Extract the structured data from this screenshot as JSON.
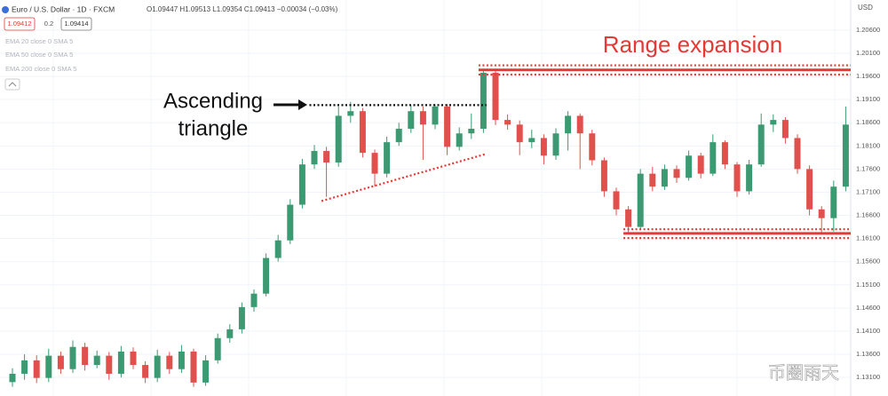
{
  "header": {
    "symbol": "Euro / U.S. Dollar · 1D · FXCM",
    "ohlc": "O1.09447 H1.09513 L1.09354 C1.09413 −0.00034 (−0.03%)",
    "sell": "1.09412",
    "spread": "0.2",
    "buy": "1.09414",
    "indicators": [
      "EMA 20 close 0 SMA 5",
      "EMA 50 close 0 SMA 5",
      "EMA 200 close 0 SMA 5"
    ],
    "watermark": "币圈雨天"
  },
  "chart_data": {
    "type": "candlestick",
    "y_axis_label": "USD",
    "up_color": "#3c9a72",
    "down_color": "#e0514d",
    "grid": true,
    "open": [
      1.13,
      1.1318,
      1.1347,
      1.1309,
      1.1357,
      1.1328,
      1.1376,
      1.1337,
      1.1357,
      1.1318,
      1.1366,
      1.1337,
      1.1309,
      1.1357,
      1.1328,
      1.1366,
      1.1299,
      1.1347,
      1.1395,
      1.1414,
      1.1462,
      1.1491,
      1.1568,
      1.1606,
      1.1683,
      1.177,
      1.1799,
      1.1774,
      1.1875,
      1.1885,
      1.1795,
      1.175,
      1.1818,
      1.1847,
      1.1885,
      1.1856,
      1.1895,
      1.1808,
      1.1837,
      1.1847,
      1.1968,
      1.1866,
      1.1856,
      1.1818,
      1.1827,
      1.1789,
      1.1837,
      1.1875,
      1.1837,
      1.1779,
      1.1712,
      1.1673,
      1.1635,
      1.175,
      1.1722,
      1.176,
      1.1741,
      1.1789,
      1.175,
      1.1818,
      1.177,
      1.1712,
      1.177,
      1.1856,
      1.1866,
      1.1827,
      1.176,
      1.1673,
      1.1654,
      1.1722
    ],
    "high": [
      1.133,
      1.136,
      1.1358,
      1.1372,
      1.1366,
      1.139,
      1.1385,
      1.1368,
      1.1365,
      1.1378,
      1.1375,
      1.1345,
      1.137,
      1.1365,
      1.138,
      1.1372,
      1.1358,
      1.1405,
      1.1425,
      1.1472,
      1.15,
      1.1578,
      1.1618,
      1.1695,
      1.1782,
      1.1812,
      1.1808,
      1.1895,
      1.1905,
      1.1892,
      1.1802,
      1.183,
      1.186,
      1.1898,
      1.1895,
      1.19,
      1.19,
      1.185,
      1.188,
      1.1975,
      1.1972,
      1.1878,
      1.1865,
      1.1845,
      1.1835,
      1.1848,
      1.1885,
      1.188,
      1.1845,
      1.1785,
      1.172,
      1.168,
      1.176,
      1.1765,
      1.177,
      1.1768,
      1.18,
      1.1795,
      1.1835,
      1.1822,
      1.1775,
      1.178,
      1.188,
      1.1878,
      1.1872,
      1.1835,
      1.1768,
      1.168,
      1.1735,
      1.1895
    ],
    "low": [
      1.129,
      1.1305,
      1.1298,
      1.13,
      1.1318,
      1.132,
      1.1325,
      1.133,
      1.1305,
      1.131,
      1.1328,
      1.1298,
      1.13,
      1.1318,
      1.132,
      1.129,
      1.1292,
      1.134,
      1.1385,
      1.1405,
      1.1452,
      1.1485,
      1.156,
      1.1598,
      1.1675,
      1.176,
      1.17,
      1.1765,
      1.186,
      1.1785,
      1.1722,
      1.1742,
      1.181,
      1.1838,
      1.178,
      1.1846,
      1.179,
      1.18,
      1.1825,
      1.1838,
      1.1855,
      1.1845,
      1.179,
      1.1805,
      1.177,
      1.178,
      1.18,
      1.176,
      1.1768,
      1.17,
      1.166,
      1.1622,
      1.1628,
      1.1712,
      1.1715,
      1.173,
      1.1735,
      1.174,
      1.1745,
      1.176,
      1.17,
      1.1705,
      1.1765,
      1.184,
      1.1815,
      1.175,
      1.166,
      1.162,
      1.1625,
      1.1712
    ],
    "close": [
      1.1318,
      1.1347,
      1.1309,
      1.1357,
      1.1328,
      1.1376,
      1.1337,
      1.1357,
      1.1318,
      1.1366,
      1.1337,
      1.1309,
      1.1357,
      1.1328,
      1.1366,
      1.1299,
      1.1347,
      1.1395,
      1.1414,
      1.1462,
      1.1491,
      1.1568,
      1.1606,
      1.1683,
      1.177,
      1.1799,
      1.1774,
      1.1875,
      1.1885,
      1.1795,
      1.175,
      1.1818,
      1.1847,
      1.1885,
      1.1856,
      1.1895,
      1.1808,
      1.1837,
      1.1847,
      1.1968,
      1.1866,
      1.1856,
      1.1818,
      1.1827,
      1.1789,
      1.1837,
      1.1875,
      1.1837,
      1.1779,
      1.1712,
      1.1673,
      1.1635,
      1.175,
      1.1722,
      1.176,
      1.1741,
      1.1789,
      1.175,
      1.1818,
      1.177,
      1.1712,
      1.177,
      1.1856,
      1.1866,
      1.1827,
      1.176,
      1.1673,
      1.1654,
      1.1722,
      1.1856
    ],
    "ylim": [
      1.127,
      1.2125
    ],
    "yticks": [
      {
        "value": 1.131,
        "label": "1.13100"
      },
      {
        "value": 1.136,
        "label": "1.13600"
      },
      {
        "value": 1.141,
        "label": "1.14100"
      },
      {
        "value": 1.146,
        "label": "1.14600"
      },
      {
        "value": 1.151,
        "label": "1.15100"
      },
      {
        "value": 1.156,
        "label": "1.15600"
      },
      {
        "value": 1.161,
        "label": "1.16100"
      },
      {
        "value": 1.166,
        "label": "1.16600"
      },
      {
        "value": 1.171,
        "label": "1.17100"
      },
      {
        "value": 1.176,
        "label": "1.17600"
      },
      {
        "value": 1.181,
        "label": "1.18100"
      },
      {
        "value": 1.186,
        "label": "1.18600"
      },
      {
        "value": 1.191,
        "label": "1.19100"
      },
      {
        "value": 1.196,
        "label": "1.19600"
      },
      {
        "value": 1.201,
        "label": "1.20100"
      },
      {
        "value": 1.206,
        "label": "1.20600"
      }
    ],
    "lines": [
      {
        "start_price": 1.1974,
        "end_price": 1.1974,
        "from": 39,
        "to": 69,
        "style": "solid",
        "color": "#e53935"
      },
      {
        "start_price": 1.1984,
        "end_price": 1.1984,
        "from": 39,
        "to": 69,
        "style": "dotted",
        "color": "#e53935"
      },
      {
        "start_price": 1.1964,
        "end_price": 1.1964,
        "from": 39,
        "to": 69,
        "style": "dotted",
        "color": "#e53935"
      },
      {
        "start_price": 1.1621,
        "end_price": 1.1621,
        "from": 51,
        "to": 69,
        "style": "solid",
        "color": "#e53935"
      },
      {
        "start_price": 1.163,
        "end_price": 1.163,
        "from": 51,
        "to": 69,
        "style": "dotted",
        "color": "#e53935"
      },
      {
        "start_price": 1.1611,
        "end_price": 1.1611,
        "from": 51,
        "to": 69,
        "style": "dotted",
        "color": "#e53935"
      },
      {
        "start_price": 1.1898,
        "end_price": 1.1898,
        "from": 25,
        "to": 39,
        "style": "dotted",
        "color": "#111111"
      },
      {
        "start_price": 1.1691,
        "end_price": 1.1793,
        "from": 26,
        "to": 39,
        "style": "dotted",
        "color": "#e53935"
      }
    ],
    "annotations": [
      {
        "text": "Range expansion",
        "color": "#e53935"
      },
      {
        "text_lines": [
          "Ascending",
          "triangle"
        ],
        "color": "#111111"
      }
    ]
  }
}
